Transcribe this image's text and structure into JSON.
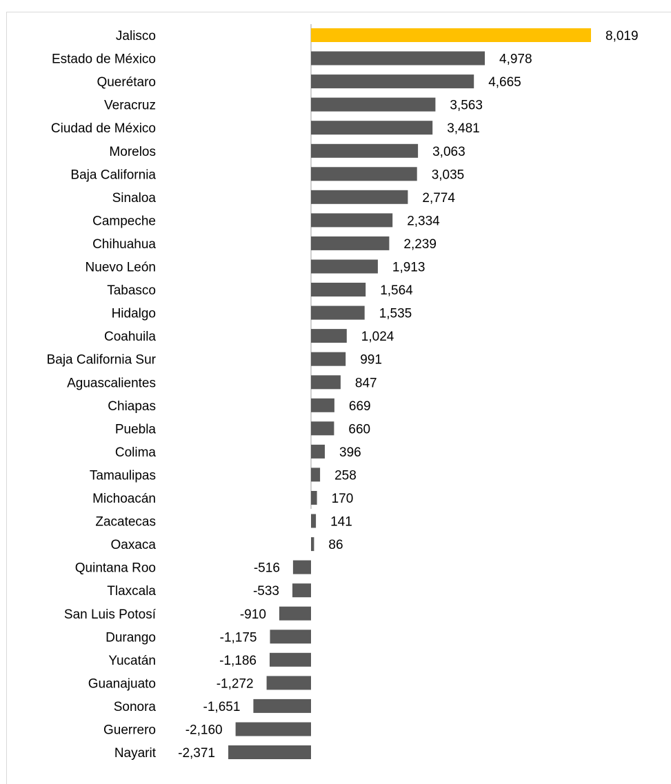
{
  "chart_data": {
    "type": "bar",
    "orientation": "horizontal",
    "title": "",
    "xlabel": "",
    "ylabel": "",
    "grid": false,
    "legend": "none",
    "highlight_color": "#FFC000",
    "bar_color": "#595959",
    "categories": [
      "Jalisco",
      "Estado de México",
      "Querétaro",
      "Veracruz",
      "Ciudad de México",
      "Morelos",
      "Baja California",
      "Sinaloa",
      "Campeche",
      "Chihuahua",
      "Nuevo León",
      "Tabasco",
      "Hidalgo",
      "Coahuila",
      "Baja California Sur",
      "Aguascalientes",
      "Chiapas",
      "Puebla",
      "Colima",
      "Tamaulipas",
      "Michoacán",
      "Zacatecas",
      "Oaxaca",
      "Quintana Roo",
      "Tlaxcala",
      "San Luis Potosí",
      "Durango",
      "Yucatán",
      "Guanajuato",
      "Sonora",
      "Guerrero",
      "Nayarit"
    ],
    "values": [
      8019,
      4978,
      4665,
      3563,
      3481,
      3063,
      3035,
      2774,
      2334,
      2239,
      1913,
      1564,
      1535,
      1024,
      991,
      847,
      669,
      660,
      396,
      258,
      170,
      141,
      86,
      -516,
      -533,
      -910,
      -1175,
      -1186,
      -1272,
      -1651,
      -2160,
      -2371
    ],
    "value_labels": [
      "8,019",
      "4,978",
      "4,665",
      "3,563",
      "3,481",
      "3,063",
      "3,035",
      "2,774",
      "2,334",
      "2,239",
      "1,913",
      "1,564",
      "1,535",
      "1,024",
      "991",
      "847",
      "669",
      "660",
      "396",
      "258",
      "170",
      "141",
      "86",
      "-516",
      "-533",
      "-910",
      "-1,175",
      "-1,186",
      "-1,272",
      "-1,651",
      "-2,160",
      "-2,371"
    ],
    "highlight_category": "Jalisco"
  }
}
